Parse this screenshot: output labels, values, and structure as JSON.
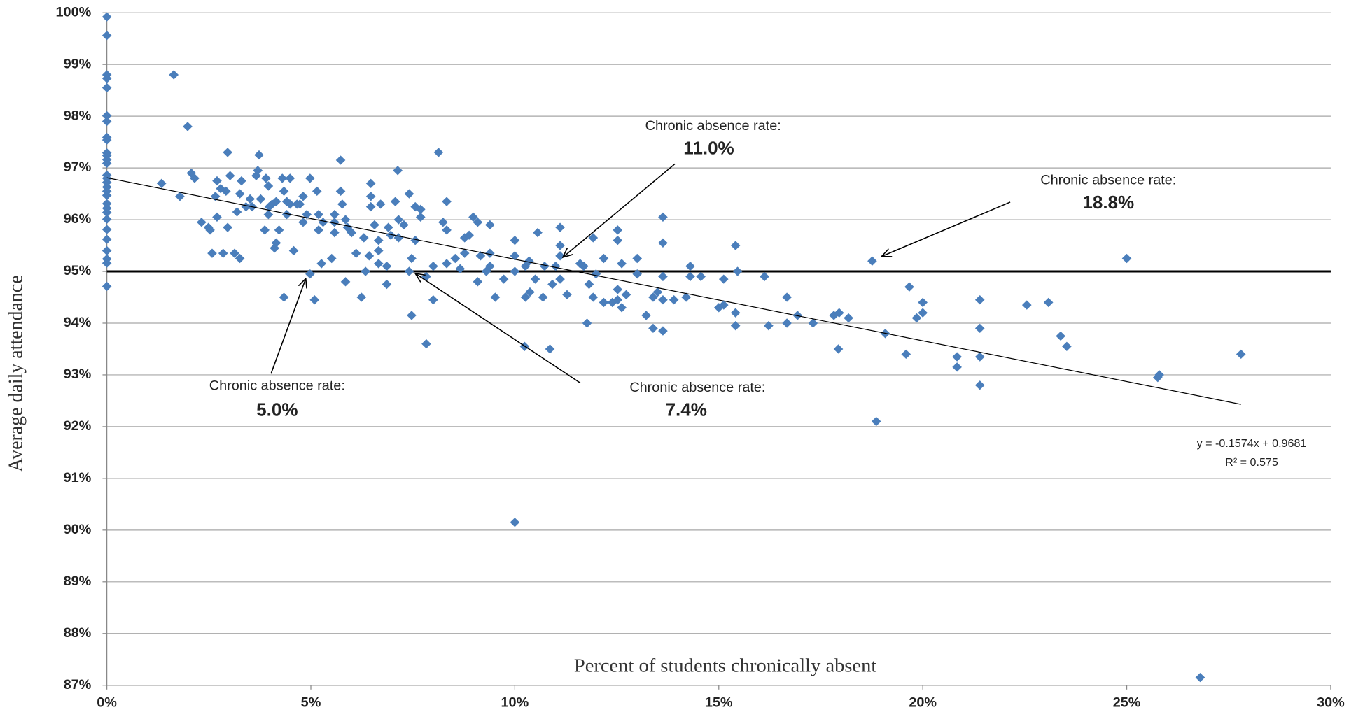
{
  "chart_data": {
    "type": "scatter",
    "x_label": "Percent of students chronically absent",
    "y_label": "Average daily attendance",
    "color": "#4a7ebb",
    "grid": true,
    "xlim": [
      0,
      30
    ],
    "ylim": [
      87,
      100
    ],
    "xticks": [
      {
        "value": 0,
        "label": "0%"
      },
      {
        "value": 5,
        "label": "5%"
      },
      {
        "value": 10,
        "label": "10%"
      },
      {
        "value": 15,
        "label": "15%"
      },
      {
        "value": 20,
        "label": "20%"
      },
      {
        "value": 25,
        "label": "25%"
      },
      {
        "value": 30,
        "label": "30%"
      }
    ],
    "yticks": [
      {
        "value": 87,
        "label": "87%"
      },
      {
        "value": 88,
        "label": "88%"
      },
      {
        "value": 89,
        "label": "89%"
      },
      {
        "value": 90,
        "label": "90%"
      },
      {
        "value": 91,
        "label": "91%"
      },
      {
        "value": 92,
        "label": "92%"
      },
      {
        "value": 93,
        "label": "93%"
      },
      {
        "value": 94,
        "label": "94%"
      },
      {
        "value": 95,
        "label": "95%"
      },
      {
        "value": 96,
        "label": "96%"
      },
      {
        "value": 97,
        "label": "97%"
      },
      {
        "value": 98,
        "label": "98%"
      },
      {
        "value": 99,
        "label": "99%"
      },
      {
        "value": 100,
        "label": "100%"
      }
    ],
    "reference_line": 95,
    "trendline": {
      "x": [
        0,
        27.8
      ],
      "values": [
        96.81,
        92.43
      ],
      "equation": "y = -0.1574x + 0.9681",
      "r_squared": "R² = 0.575"
    },
    "annotations": [
      {
        "label": "Chronic absence rate:",
        "rate": "11.0%"
      },
      {
        "label": "Chronic absence rate:",
        "rate": "18.8%"
      },
      {
        "label": "Chronic absence rate:",
        "rate": "5.0%"
      },
      {
        "label": "Chronic absence rate:",
        "rate": "7.4%"
      }
    ],
    "x": [
      0,
      0,
      0,
      0,
      0,
      0,
      0,
      0,
      0,
      0,
      0,
      0,
      0,
      0,
      0,
      0,
      0,
      0,
      0,
      0,
      0,
      0,
      0,
      0,
      0,
      0,
      0,
      0,
      0,
      1.34,
      1.64,
      1.79,
      1.98,
      2.07,
      2.15,
      2.32,
      2.49,
      2.53,
      2.58,
      2.66,
      2.7,
      2.7,
      2.79,
      2.85,
      2.92,
      2.96,
      2.96,
      3.02,
      3.13,
      3.19,
      3.26,
      3.26,
      3.3,
      3.41,
      3.51,
      3.56,
      3.66,
      3.7,
      3.73,
      3.77,
      3.87,
      3.9,
      3.96,
      3.96,
      3.98,
      4.05,
      4.11,
      4.15,
      4.15,
      4.22,
      4.3,
      4.34,
      4.34,
      4.41,
      4.41,
      4.49,
      4.49,
      4.58,
      4.66,
      4.73,
      4.81,
      4.81,
      4.9,
      4.98,
      4.98,
      5.09,
      5.15,
      5.19,
      5.19,
      5.26,
      5.3,
      5.51,
      5.58,
      5.58,
      5.58,
      5.73,
      5.73,
      5.77,
      5.85,
      5.85,
      5.9,
      6.0,
      6.11,
      6.24,
      6.3,
      6.34,
      6.43,
      6.47,
      6.47,
      6.47,
      6.56,
      6.66,
      6.66,
      6.66,
      6.71,
      6.86,
      6.86,
      6.9,
      6.96,
      7.07,
      7.13,
      7.15,
      7.15,
      7.28,
      7.41,
      7.41,
      7.47,
      7.47,
      7.56,
      7.56,
      7.69,
      7.69,
      7.83,
      7.83,
      8.0,
      8.0,
      8.13,
      8.24,
      8.33,
      8.33,
      8.33,
      8.54,
      8.66,
      8.77,
      8.77,
      8.88,
      8.98,
      9.09,
      9.09,
      9.16,
      9.3,
      9.39,
      9.39,
      9.39,
      9.52,
      9.73,
      10.0,
      10.0,
      10.0,
      10.0,
      10.24,
      10.26,
      10.26,
      10.35,
      10.37,
      10.5,
      10.56,
      10.69,
      10.73,
      10.86,
      10.92,
      11.0,
      11.11,
      11.11,
      11.11,
      11.11,
      11.28,
      11.6,
      11.69,
      11.77,
      11.82,
      11.92,
      11.92,
      11.99,
      12.18,
      12.18,
      12.39,
      12.52,
      12.52,
      12.52,
      12.52,
      12.62,
      12.62,
      12.73,
      13.0,
      13.0,
      13.22,
      13.39,
      13.39,
      13.5,
      13.63,
      13.63,
      13.63,
      13.63,
      13.63,
      13.9,
      14.2,
      14.3,
      14.3,
      14.56,
      15.0,
      15.12,
      15.12,
      15.41,
      15.41,
      15.41,
      15.46,
      16.12,
      16.22,
      16.67,
      16.67,
      16.93,
      17.31,
      17.82,
      17.93,
      17.95,
      18.18,
      18.76,
      18.86,
      19.08,
      19.59,
      19.67,
      19.85,
      20.0,
      20.0,
      20.84,
      20.84,
      21.4,
      21.4,
      21.4,
      21.4,
      22.55,
      23.08,
      23.38,
      23.53,
      25.0,
      25.76,
      25.8,
      26.8,
      27.8
    ],
    "values": [
      99.92,
      99.56,
      98.8,
      98.73,
      98.55,
      98.01,
      97.9,
      97.59,
      97.54,
      97.29,
      97.24,
      97.16,
      97.09,
      96.86,
      96.8,
      96.72,
      96.63,
      96.55,
      96.47,
      96.31,
      96.22,
      96.14,
      96.01,
      95.81,
      95.62,
      95.4,
      95.24,
      95.16,
      94.71,
      96.7,
      98.8,
      96.45,
      97.8,
      96.9,
      96.8,
      95.95,
      95.85,
      95.8,
      95.35,
      96.45,
      96.75,
      96.05,
      96.6,
      95.35,
      96.55,
      95.85,
      97.3,
      96.85,
      95.35,
      96.15,
      96.5,
      95.25,
      96.75,
      96.25,
      96.4,
      96.25,
      96.85,
      96.95,
      97.25,
      96.4,
      95.8,
      96.8,
      96.1,
      96.65,
      96.25,
      96.3,
      95.45,
      95.55,
      96.35,
      95.8,
      96.8,
      96.55,
      94.5,
      96.1,
      96.35,
      96.8,
      96.3,
      95.4,
      96.3,
      96.3,
      96.45,
      95.95,
      96.1,
      96.8,
      94.95,
      94.45,
      96.55,
      96.1,
      95.8,
      95.15,
      95.95,
      95.25,
      95.95,
      95.75,
      96.1,
      97.15,
      96.55,
      96.3,
      96.0,
      94.8,
      95.85,
      95.75,
      95.35,
      94.5,
      95.65,
      95.0,
      95.3,
      96.25,
      96.7,
      96.45,
      95.9,
      95.6,
      95.4,
      95.15,
      96.3,
      94.75,
      95.1,
      95.85,
      95.7,
      96.35,
      96.95,
      95.65,
      96.0,
      95.9,
      95.0,
      96.5,
      95.25,
      94.15,
      95.6,
      96.25,
      96.2,
      96.05,
      93.6,
      94.9,
      95.1,
      94.45,
      97.3,
      95.95,
      95.15,
      95.8,
      96.35,
      95.25,
      95.05,
      95.35,
      95.65,
      95.7,
      96.05,
      94.8,
      95.95,
      95.3,
      95.0,
      95.9,
      95.35,
      95.1,
      94.5,
      94.85,
      95.6,
      95.3,
      90.15,
      95.0,
      93.55,
      94.5,
      95.1,
      95.2,
      94.6,
      94.85,
      95.75,
      94.5,
      95.1,
      93.5,
      94.75,
      95.1,
      95.85,
      95.5,
      95.3,
      94.85,
      94.55,
      95.15,
      95.1,
      94.0,
      94.75,
      95.65,
      94.5,
      94.95,
      94.4,
      95.25,
      94.4,
      95.8,
      95.6,
      94.65,
      94.45,
      95.15,
      94.3,
      94.55,
      94.95,
      95.25,
      94.15,
      93.9,
      94.5,
      94.6,
      96.05,
      95.55,
      94.45,
      94.9,
      93.85,
      94.45,
      94.5,
      94.9,
      95.1,
      94.9,
      94.3,
      94.35,
      94.85,
      94.2,
      93.95,
      95.5,
      95.0,
      94.9,
      93.95,
      94.0,
      94.5,
      94.15,
      94.0,
      94.15,
      93.5,
      94.2,
      94.1,
      95.2,
      92.1,
      93.8,
      93.4,
      94.7,
      94.1,
      94.4,
      94.2,
      93.35,
      93.15,
      94.45,
      93.9,
      93.35,
      92.8,
      94.35,
      94.4,
      93.75,
      93.55,
      95.25,
      92.95,
      93.0,
      87.15,
      93.4
    ]
  }
}
